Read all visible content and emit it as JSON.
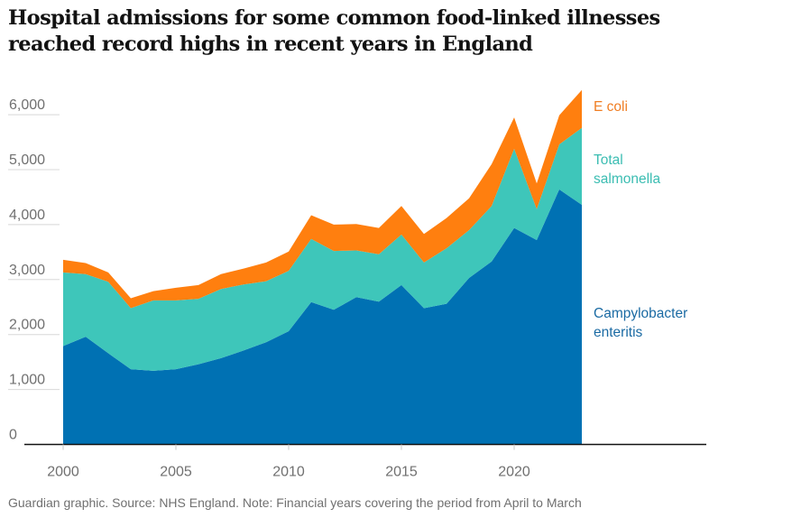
{
  "chart_data": {
    "type": "area",
    "stacked": true,
    "title": "Hospital admissions for some common food-linked illnesses reached record highs in recent years in England",
    "title_lines": [
      "Hospital admissions for some common food-linked illnesses",
      "reached record highs in recent years in England"
    ],
    "xlabel": "",
    "ylabel": "",
    "x": [
      2000,
      2001,
      2002,
      2003,
      2004,
      2005,
      2006,
      2007,
      2008,
      2009,
      2010,
      2011,
      2012,
      2013,
      2014,
      2015,
      2016,
      2017,
      2018,
      2019,
      2020,
      2021,
      2022,
      2023
    ],
    "xticks": [
      2000,
      2005,
      2010,
      2015,
      2020
    ],
    "xtick_labels": [
      "2000",
      "2005",
      "2010",
      "2015",
      "2020"
    ],
    "xlim": [
      2000,
      2029.4
    ],
    "yticks": [
      0,
      1000,
      2000,
      3000,
      4000,
      5000,
      6000
    ],
    "ytick_labels": [
      "0",
      "1,000",
      "2,000",
      "3,000",
      "4,000",
      "5,000",
      "6,000"
    ],
    "ylim": [
      0,
      6000
    ],
    "grid": true,
    "legend": "direct labels at right end of areas",
    "series": [
      {
        "name": "Campylobacter enteritis",
        "label_lines": [
          "Campylobacter",
          "enteritis"
        ],
        "color": "#0071b3",
        "label_color": "#1a6aa3",
        "values": [
          1790,
          1960,
          1660,
          1370,
          1340,
          1370,
          1460,
          1570,
          1710,
          1860,
          2060,
          2590,
          2450,
          2680,
          2600,
          2900,
          2480,
          2560,
          3030,
          3330,
          3940,
          3720,
          4640,
          4360
        ]
      },
      {
        "name": "Total salmonella",
        "label_lines": [
          "Total",
          "salmonella"
        ],
        "color": "#3ec6ba",
        "label_color": "#3bbdb2",
        "values": [
          1340,
          1140,
          1300,
          1110,
          1280,
          1250,
          1190,
          1260,
          1200,
          1110,
          1100,
          1150,
          1070,
          850,
          860,
          920,
          830,
          1010,
          870,
          1010,
          1440,
          560,
          820,
          1400
        ]
      },
      {
        "name": "E coli",
        "label_lines": [
          "E coli"
        ],
        "color": "#ff7f0f",
        "label_color": "#f07d22",
        "values": [
          230,
          200,
          170,
          180,
          170,
          230,
          250,
          270,
          290,
          340,
          350,
          430,
          480,
          480,
          480,
          520,
          520,
          550,
          580,
          760,
          570,
          470,
          530,
          690
        ]
      }
    ]
  },
  "footer": "Guardian graphic. Source: NHS England. Note: Financial years covering the period from April to March"
}
